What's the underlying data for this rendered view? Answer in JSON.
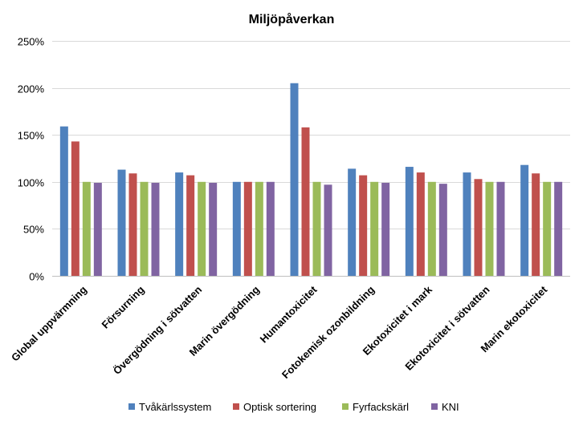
{
  "chart_data": {
    "type": "bar",
    "title": "Miljöpåverkan",
    "categories": [
      "Global uppvärmning",
      "Försurning",
      "Övergödning i sötvatten",
      "Marin övergödning",
      "Humantoxicitet",
      "Fotokemisk ozonbildning",
      "Ekotoxicitet i mark",
      "Ekotoxicitet i sötvatten",
      "Marin ekotoxicitet"
    ],
    "series": [
      {
        "name": "Tvåkärlssystem",
        "color": "#4f81bd",
        "values": [
          159,
          113,
          110,
          100,
          205,
          114,
          116,
          110,
          118
        ]
      },
      {
        "name": "Optisk sortering",
        "color": "#c0504d",
        "values": [
          143,
          109,
          107,
          100,
          158,
          107,
          110,
          103,
          109
        ]
      },
      {
        "name": "Fyrfackskärl",
        "color": "#9bbb59",
        "values": [
          100,
          100,
          100,
          100,
          100,
          100,
          100,
          100,
          100
        ]
      },
      {
        "name": "KNI",
        "color": "#8064a2",
        "values": [
          99,
          99,
          99,
          100,
          97,
          99,
          98,
          100,
          100
        ]
      }
    ],
    "ylim": [
      0,
      250
    ],
    "yticks": [
      0,
      50,
      100,
      150,
      200,
      250
    ],
    "ytick_labels": [
      "0%",
      "50%",
      "100%",
      "150%",
      "200%",
      "250%"
    ],
    "xlabel": "",
    "ylabel": "",
    "grid": true,
    "legend_position": "bottom"
  }
}
